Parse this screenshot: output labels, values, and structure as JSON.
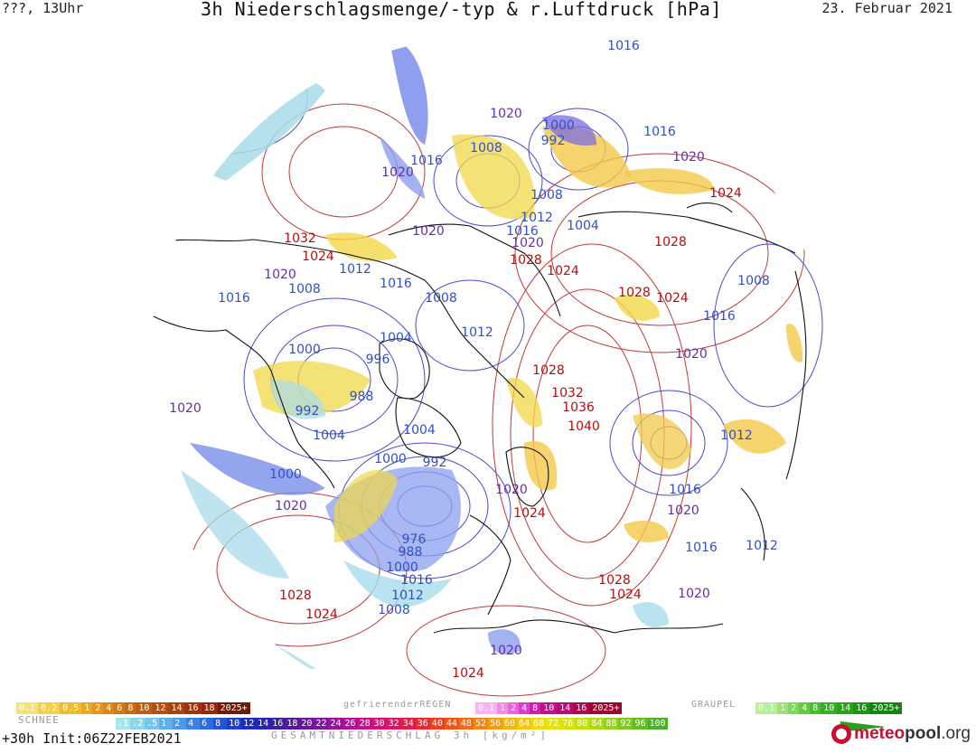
{
  "header": {
    "left": "???, 13Uhr",
    "title": "3h Niederschlagsmenge/-typ & r.Luftdruck [hPa]",
    "date": "23. Februar 2021"
  },
  "footer": {
    "left": "+30h  Init:06Z22FEB2021",
    "mid": "GESAMTNIEDERSCHLAG 3h [kg/m²]",
    "brand_a": "meteo",
    "brand_b": "pool",
    "brand_c": ".org"
  },
  "legend": {
    "snow_label": "SCHNEE",
    "frz_label": "gefrierenderREGEN",
    "graupel_label": "GRAUPEL",
    "snow": [
      "0.1",
      "0.2",
      "0.5",
      "1",
      "2",
      "4",
      "6",
      "8",
      "10",
      "12",
      "14",
      "16",
      "18",
      "2025+"
    ],
    "snow_colors": [
      "#f6e27a",
      "#f3cf4a",
      "#f0bb2c",
      "#eea820",
      "#e6961a",
      "#dc8818",
      "#d27a16",
      "#c86c14",
      "#be5e12",
      "#b45010",
      "#aa420e",
      "#a0340c",
      "#96260a",
      "#6c1a06"
    ],
    "frz": [
      "0.1",
      "1",
      "2",
      "4",
      "8",
      "10",
      "14",
      "16",
      "2025+"
    ],
    "frz_colors": [
      "#f9b3f0",
      "#f08de6",
      "#e865dc",
      "#dc3cd0",
      "#d01cb4",
      "#c40e90",
      "#b80a70",
      "#ac0650",
      "#a00230"
    ],
    "graupel": [
      "0.1",
      "1",
      "2",
      "4",
      "8",
      "10",
      "14",
      "16",
      "2025+"
    ],
    "graupel_colors": [
      "#b8ee9c",
      "#9ce27c",
      "#80d65c",
      "#64ca44",
      "#48be30",
      "#36b020",
      "#2aa218",
      "#1e9412",
      "#12860c"
    ],
    "total": [
      ".1",
      ".2",
      ".5",
      "1",
      "2",
      "4",
      "6",
      "8",
      "10",
      "12",
      "14",
      "16",
      "18",
      "20",
      "22",
      "24",
      "26",
      "28",
      "30",
      "32",
      "34",
      "36",
      "40",
      "44",
      "48",
      "52",
      "56",
      "60",
      "64",
      "68",
      "72",
      "76",
      "80",
      "84",
      "88",
      "92",
      "96",
      "100"
    ],
    "total_colors": [
      "#a8e6ee",
      "#8cd8ea",
      "#74c6ea",
      "#5eb0ea",
      "#4a9aea",
      "#3a82e6",
      "#2e6ae0",
      "#2652d8",
      "#1e3ed0",
      "#1a2cc4",
      "#2a22b0",
      "#3c1ea0",
      "#5418a0",
      "#6c14a0",
      "#8412a0",
      "#9c10a0",
      "#b40ea0",
      "#cc0c90",
      "#dc0c78",
      "#e41060",
      "#e81848",
      "#ec2830",
      "#f03c20",
      "#f25418",
      "#f46c14",
      "#f68410",
      "#f89c0c",
      "#f8b40a",
      "#f6c808",
      "#f2da08",
      "#e8e408",
      "#d8e408",
      "#c4e00a",
      "#aeda10",
      "#96d216",
      "#7ec81c",
      "#64bc20",
      "#4cb024"
    ]
  },
  "pressure_labels": [
    {
      "t": "1016",
      "c": "#3050c8"
    },
    {
      "t": "1020",
      "c": "#6030a8"
    },
    {
      "t": "1000",
      "c": "#3050c8"
    },
    {
      "t": "992",
      "c": "#3050c8"
    },
    {
      "t": "1016",
      "c": "#3050c8"
    },
    {
      "t": "1020",
      "c": "#6030a8"
    },
    {
      "t": "1008",
      "c": "#3050c8"
    },
    {
      "t": "1020",
      "c": "#6030a8"
    },
    {
      "t": "1016",
      "c": "#3050c8"
    },
    {
      "t": "1008",
      "c": "#3050c8"
    },
    {
      "t": "1024",
      "c": "#b01010"
    },
    {
      "t": "1020",
      "c": "#6030a8"
    },
    {
      "t": "1012",
      "c": "#3050c8"
    },
    {
      "t": "1004",
      "c": "#3050c8"
    },
    {
      "t": "1016",
      "c": "#3050c8"
    },
    {
      "t": "1032",
      "c": "#b01010"
    },
    {
      "t": "1024",
      "c": "#b01010"
    },
    {
      "t": "1020",
      "c": "#6030a8"
    },
    {
      "t": "1028",
      "c": "#b01010"
    },
    {
      "t": "1028",
      "c": "#b01010"
    },
    {
      "t": "1024",
      "c": "#b01010"
    },
    {
      "t": "1020",
      "c": "#6030a8"
    },
    {
      "t": "1012",
      "c": "#3050c8"
    },
    {
      "t": "1008",
      "c": "#3050c8"
    },
    {
      "t": "1016",
      "c": "#3050c8"
    },
    {
      "t": "1016",
      "c": "#3050c8"
    },
    {
      "t": "1008",
      "c": "#3050c8"
    },
    {
      "t": "1028",
      "c": "#b01010"
    },
    {
      "t": "1024",
      "c": "#b01010"
    },
    {
      "t": "1008",
      "c": "#3050c8"
    },
    {
      "t": "1016",
      "c": "#3050c8"
    },
    {
      "t": "1012",
      "c": "#3050c8"
    },
    {
      "t": "1000",
      "c": "#3050c8"
    },
    {
      "t": "1004",
      "c": "#3050c8"
    },
    {
      "t": "996",
      "c": "#3050c8"
    },
    {
      "t": "1020",
      "c": "#6030a8"
    },
    {
      "t": "988",
      "c": "#3050c8"
    },
    {
      "t": "992",
      "c": "#3050c8"
    },
    {
      "t": "1028",
      "c": "#b01010"
    },
    {
      "t": "1032",
      "c": "#b01010"
    },
    {
      "t": "1036",
      "c": "#b01010"
    },
    {
      "t": "1020",
      "c": "#6030a8"
    },
    {
      "t": "1004",
      "c": "#3050c8"
    },
    {
      "t": "1004",
      "c": "#3050c8"
    },
    {
      "t": "1040",
      "c": "#b01010"
    },
    {
      "t": "1012",
      "c": "#3050c8"
    },
    {
      "t": "1000",
      "c": "#3050c8"
    },
    {
      "t": "992",
      "c": "#3050c8"
    },
    {
      "t": "1000",
      "c": "#3050c8"
    },
    {
      "t": "1020",
      "c": "#6030a8"
    },
    {
      "t": "1016",
      "c": "#3050c8"
    },
    {
      "t": "1020",
      "c": "#6030a8"
    },
    {
      "t": "1024",
      "c": "#b01010"
    },
    {
      "t": "1020",
      "c": "#6030a8"
    },
    {
      "t": "976",
      "c": "#3050c8"
    },
    {
      "t": "988",
      "c": "#3050c8"
    },
    {
      "t": "1000",
      "c": "#3050c8"
    },
    {
      "t": "1016",
      "c": "#3050c8"
    },
    {
      "t": "1012",
      "c": "#3050c8"
    },
    {
      "t": "1008",
      "c": "#3050c8"
    },
    {
      "t": "1028",
      "c": "#b01010"
    },
    {
      "t": "1024",
      "c": "#b01010"
    },
    {
      "t": "1020",
      "c": "#6030a8"
    },
    {
      "t": "1012",
      "c": "#3050c8"
    },
    {
      "t": "1016",
      "c": "#3050c8"
    },
    {
      "t": "1028",
      "c": "#b01010"
    },
    {
      "t": "1024",
      "c": "#b01010"
    },
    {
      "t": "1020",
      "c": "#6030a8"
    },
    {
      "t": "1024",
      "c": "#b01010"
    }
  ]
}
